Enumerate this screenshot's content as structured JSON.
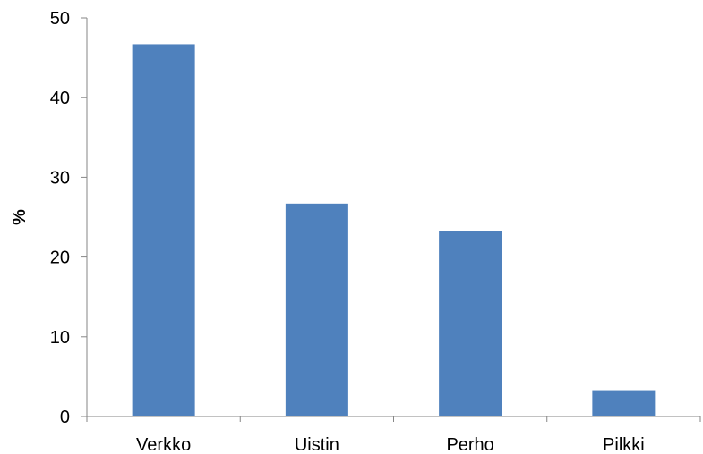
{
  "chart_data": {
    "type": "bar",
    "title": "",
    "xlabel": "",
    "ylabel": "%",
    "categories": [
      "Verkko",
      "Uistin",
      "Perho",
      "Pilkki"
    ],
    "values": [
      46.7,
      26.7,
      23.3,
      3.3
    ],
    "ylim": [
      0,
      50
    ],
    "yticks": [
      0,
      10,
      20,
      30,
      40,
      50
    ],
    "ytick_labels": [
      "0",
      "10",
      "20",
      "30",
      "40",
      "50"
    ],
    "grid": false,
    "legend": "none",
    "bar_color": "#4F81BD",
    "axis_color": "#868686"
  }
}
